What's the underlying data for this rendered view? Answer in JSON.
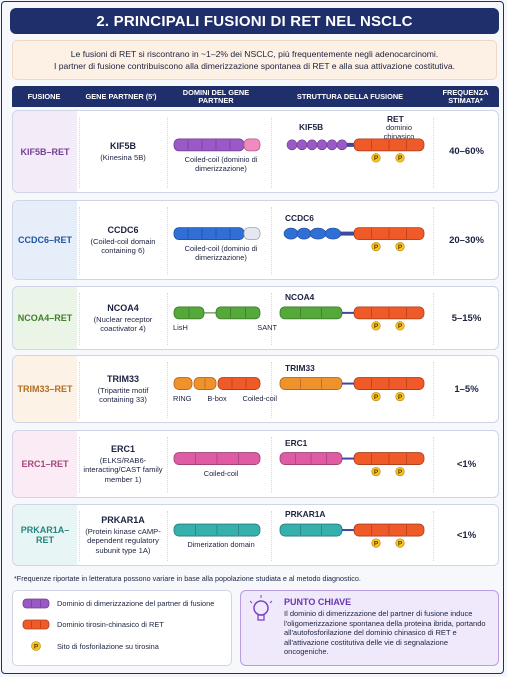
{
  "header": {
    "title": "2. PRINCIPALI FUSIONI DI RET NEL NSCLC",
    "intro": [
      "Le fusioni di RET si riscontrano in ~1–2% dei NSCLC, più frequentemente negli adenocarcinomi.",
      "I partner di fusione contribuiscono alla dimerizzazione spontanea di RET e alla sua attivazione costitutiva."
    ]
  },
  "table": {
    "columns": [
      "FUSIONE",
      "GENE PARTNER (5')",
      "DOMINI DEL GENE PARTNER",
      "STRUTTURA DELLA FUSIONE",
      "FREQUENZA STIMATA*"
    ],
    "ret_label": "RET",
    "ret_domain_label": "dominio chinasico",
    "phospho_label": "P",
    "rows": [
      {
        "fusion": "KIF5B–RET",
        "gene": "KIF5B",
        "description": "(Kinesina 5B)",
        "domains": [
          "Coiled-coil (dominio di dimerizzazione)"
        ],
        "structure_label": "KIF5B",
        "frequency": "40–60%",
        "color": "#9b59c7"
      },
      {
        "fusion": "CCDC6–RET",
        "gene": "CCDC6",
        "description": "(Coiled-coil domain containing 6)",
        "domains": [
          "Coiled-coil (dominio di dimerizzazione)"
        ],
        "structure_label": "CCDC6",
        "frequency": "20–30%",
        "color": "#2f6fd6"
      },
      {
        "fusion": "NCOA4–RET",
        "gene": "NCOA4",
        "description": "(Nuclear receptor coactivator 4)",
        "domains": [
          "LisH",
          "SANT"
        ],
        "structure_label": "NCOA4",
        "frequency": "5–15%",
        "color": "#55a83a"
      },
      {
        "fusion": "TRIM33–RET",
        "gene": "TRIM33",
        "description": "(Tripartite motif containing 33)",
        "domains": [
          "RING",
          "B-box",
          "Coiled-coil"
        ],
        "structure_label": "TRIM33",
        "frequency": "1–5%",
        "color": "#f0922b"
      },
      {
        "fusion": "ERC1–RET",
        "gene": "ERC1",
        "description": "(ELKS/RAB6-interacting/CAST family member 1)",
        "domains": [
          "Coiled-coil"
        ],
        "structure_label": "ERC1",
        "frequency": "<1%",
        "color": "#df5ba4"
      },
      {
        "fusion": "PRKAR1A–RET",
        "gene": "PRKAR1A",
        "description": "(Protein kinase cAMP-dependent regulatory subunit type 1A)",
        "domains": [
          "Dimerization domain"
        ],
        "structure_label": "PRKAR1A",
        "frequency": "<1%",
        "color": "#36b0ad"
      }
    ]
  },
  "footnote": "*Frequenze riportate in letteratura possono variare in base alla popolazione studiata e al metodo diagnostico.",
  "legend": [
    "Dominio di dimerizzazione del partner di fusione",
    "Dominio tirosin-chinasico di RET",
    "Sito di fosforilazione su tirosina"
  ],
  "key_point": {
    "title": "PUNTO CHIAVE",
    "text": "Il dominio di dimerizzazione del partner di fusione induce l'oligomerizzazione spontanea della proteina ibrida, portando all'autofosforilazione del dominio chinasico di RET e all'attivazione costitutiva delle vie di segnalazione oncogeniche."
  }
}
